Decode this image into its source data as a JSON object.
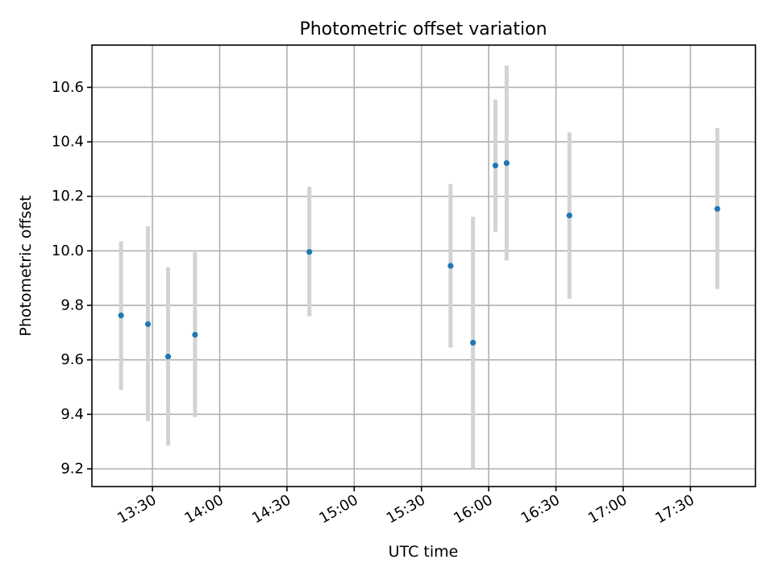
{
  "chart_data": {
    "type": "scatter",
    "title": "Photometric offset variation",
    "xlabel": "UTC time",
    "ylabel": "Photometric offset",
    "xlim": [
      "13:03",
      "17:59"
    ],
    "ylim": [
      9.135,
      10.755
    ],
    "grid": true,
    "x_ticks": [
      "13:30",
      "14:00",
      "14:30",
      "15:00",
      "15:30",
      "16:00",
      "16:30",
      "17:00",
      "17:30"
    ],
    "y_ticks": [
      9.2,
      9.4,
      9.6,
      9.8,
      10.0,
      10.2,
      10.4,
      10.6
    ],
    "y_tick_labels": [
      "9.2",
      "9.4",
      "9.6",
      "9.8",
      "10.0",
      "10.2",
      "10.4",
      "10.6"
    ],
    "point_color": "#1f77b4",
    "errorbar_color": "#d3d3d3",
    "points": [
      {
        "x": "13:16",
        "y": 9.763,
        "yerr_low": 9.49,
        "yerr_high": 10.035
      },
      {
        "x": "13:28",
        "y": 9.731,
        "yerr_low": 9.375,
        "yerr_high": 10.09
      },
      {
        "x": "13:37",
        "y": 9.612,
        "yerr_low": 9.285,
        "yerr_high": 9.94
      },
      {
        "x": "13:49",
        "y": 9.692,
        "yerr_low": 9.39,
        "yerr_high": 9.995
      },
      {
        "x": "14:40",
        "y": 9.996,
        "yerr_low": 9.76,
        "yerr_high": 10.235
      },
      {
        "x": "15:43",
        "y": 9.945,
        "yerr_low": 9.645,
        "yerr_high": 10.245
      },
      {
        "x": "15:53",
        "y": 9.663,
        "yerr_low": 9.2,
        "yerr_high": 10.125
      },
      {
        "x": "16:03",
        "y": 10.313,
        "yerr_low": 10.07,
        "yerr_high": 10.555
      },
      {
        "x": "16:08",
        "y": 10.322,
        "yerr_low": 9.965,
        "yerr_high": 10.68
      },
      {
        "x": "16:36",
        "y": 10.13,
        "yerr_low": 9.825,
        "yerr_high": 10.435
      },
      {
        "x": "17:42",
        "y": 10.154,
        "yerr_low": 9.86,
        "yerr_high": 10.45
      }
    ]
  }
}
